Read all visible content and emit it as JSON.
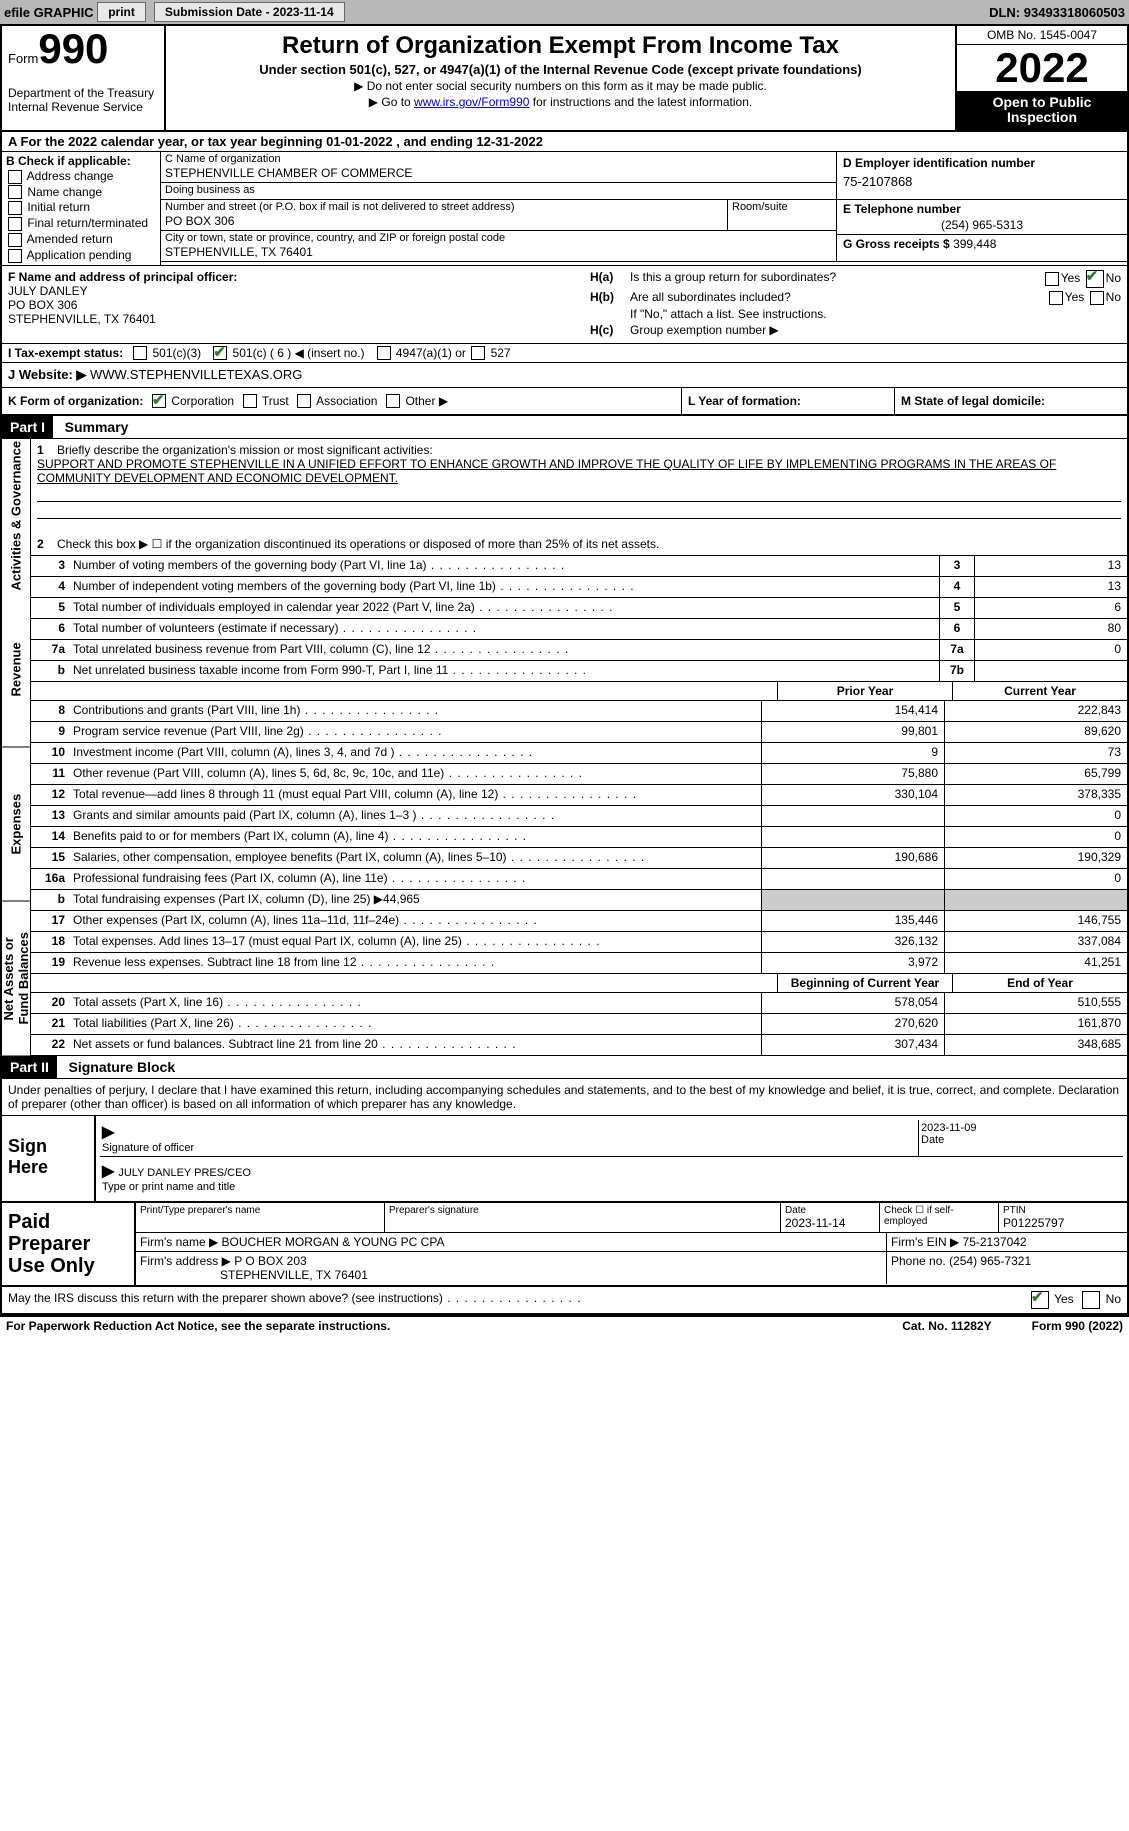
{
  "topbar": {
    "efile": "efile GRAPHIC",
    "print": "print",
    "submission_label": "Submission Date - ",
    "submission_date": "2023-11-14",
    "dln_label": "DLN: ",
    "dln": "93493318060503"
  },
  "header": {
    "form_word": "Form",
    "form_num": "990",
    "dept": "Department of the Treasury\nInternal Revenue Service",
    "title": "Return of Organization Exempt From Income Tax",
    "sub1": "Under section 501(c), 527, or 4947(a)(1) of the Internal Revenue Code (except private foundations)",
    "sub2": "▶ Do not enter social security numbers on this form as it may be made public.",
    "sub3_pre": "▶ Go to ",
    "sub3_link": "www.irs.gov/Form990",
    "sub3_post": " for instructions and the latest information.",
    "omb": "OMB No. 1545-0047",
    "year": "2022",
    "open": "Open to Public Inspection"
  },
  "lineA": {
    "pre": "A  For the 2022 calendar year, or tax year beginning ",
    "begin": "01-01-2022",
    "mid": "   , and ending ",
    "end": "12-31-2022"
  },
  "B": {
    "label": "B Check if applicable:",
    "items": [
      "Address change",
      "Name change",
      "Initial return",
      "Final return/terminated",
      "Amended return",
      "Application pending"
    ]
  },
  "C": {
    "name_label": "C Name of organization",
    "name": "STEPHENVILLE CHAMBER OF COMMERCE",
    "dba_label": "Doing business as",
    "dba": "",
    "addr_label": "Number and street (or P.O. box if mail is not delivered to street address)",
    "addr": "PO BOX 306",
    "room_label": "Room/suite",
    "city_label": "City or town, state or province, country, and ZIP or foreign postal code",
    "city": "STEPHENVILLE, TX  76401"
  },
  "D": {
    "label": "D Employer identification number",
    "val": "75-2107868"
  },
  "E": {
    "label": "E Telephone number",
    "val": "(254) 965-5313"
  },
  "G": {
    "label": "G Gross receipts $ ",
    "val": "399,448"
  },
  "F": {
    "label": "F  Name and address of principal officer:",
    "name": "JULY DANLEY",
    "addr1": "PO BOX 306",
    "addr2": "STEPHENVILLE, TX  76401"
  },
  "H": {
    "a": "Is this a group return for subordinates?",
    "b": "Are all subordinates included?",
    "b_note": "If \"No,\" attach a list. See instructions.",
    "c": "Group exemption number ▶",
    "ha_key": "H(a)",
    "hb_key": "H(b)",
    "hc_key": "H(c)",
    "yes": "Yes",
    "no": "No"
  },
  "I": {
    "label": "I     Tax-exempt status:",
    "opt1": "501(c)(3)",
    "opt2": "501(c) ( 6 ) ◀ (insert no.)",
    "opt3": "4947(a)(1) or",
    "opt4": "527"
  },
  "J": {
    "label": "J    Website: ▶",
    "val": "  WWW.STEPHENVILLETEXAS.ORG"
  },
  "K": {
    "label": "K Form of organization:",
    "corp": "Corporation",
    "trust": "Trust",
    "assoc": "Association",
    "other": "Other ▶",
    "L": "L Year of formation:",
    "M": "M State of legal domicile:"
  },
  "part1": {
    "hdr": "Part I",
    "title": "Summary"
  },
  "side_labels": {
    "ag": "Activities & Governance",
    "rev": "Revenue",
    "exp": "Expenses",
    "net": "Net Assets or\nFund Balances"
  },
  "summary1": {
    "l1": "Briefly describe the organization's mission or most significant activities:",
    "mission": "SUPPORT AND PROMOTE STEPHENVILLE IN A UNIFIED EFFORT TO ENHANCE GROWTH AND IMPROVE THE QUALITY OF LIFE BY IMPLEMENTING PROGRAMS IN THE AREAS OF COMMUNITY DEVELOPMENT AND ECONOMIC DEVELOPMENT.",
    "l2": "Check this box ▶ ☐  if the organization discontinued its operations or disposed of more than 25% of its net assets.",
    "rows": [
      {
        "n": "3",
        "d": "Number of voting members of the governing body (Part VI, line 1a)",
        "box": "3",
        "v": "13"
      },
      {
        "n": "4",
        "d": "Number of independent voting members of the governing body (Part VI, line 1b)",
        "box": "4",
        "v": "13"
      },
      {
        "n": "5",
        "d": "Total number of individuals employed in calendar year 2022 (Part V, line 2a)",
        "box": "5",
        "v": "6"
      },
      {
        "n": "6",
        "d": "Total number of volunteers (estimate if necessary)",
        "box": "6",
        "v": "80"
      },
      {
        "n": "7a",
        "d": "Total unrelated business revenue from Part VIII, column (C), line 12",
        "box": "7a",
        "v": "0"
      },
      {
        "n": "b",
        "d": "Net unrelated business taxable income from Form 990-T, Part I, line 11",
        "box": "7b",
        "v": ""
      }
    ]
  },
  "cols": {
    "prior": "Prior Year",
    "current": "Current Year",
    "beg": "Beginning of Current Year",
    "end": "End of Year"
  },
  "revenue": [
    {
      "n": "8",
      "d": "Contributions and grants (Part VIII, line 1h)",
      "p": "154,414",
      "c": "222,843"
    },
    {
      "n": "9",
      "d": "Program service revenue (Part VIII, line 2g)",
      "p": "99,801",
      "c": "89,620"
    },
    {
      "n": "10",
      "d": "Investment income (Part VIII, column (A), lines 3, 4, and 7d )",
      "p": "9",
      "c": "73"
    },
    {
      "n": "11",
      "d": "Other revenue (Part VIII, column (A), lines 5, 6d, 8c, 9c, 10c, and 11e)",
      "p": "75,880",
      "c": "65,799"
    },
    {
      "n": "12",
      "d": "Total revenue—add lines 8 through 11 (must equal Part VIII, column (A), line 12)",
      "p": "330,104",
      "c": "378,335"
    }
  ],
  "expenses": [
    {
      "n": "13",
      "d": "Grants and similar amounts paid (Part IX, column (A), lines 1–3 )",
      "p": "",
      "c": "0"
    },
    {
      "n": "14",
      "d": "Benefits paid to or for members (Part IX, column (A), line 4)",
      "p": "",
      "c": "0"
    },
    {
      "n": "15",
      "d": "Salaries, other compensation, employee benefits (Part IX, column (A), lines 5–10)",
      "p": "190,686",
      "c": "190,329"
    },
    {
      "n": "16a",
      "d": "Professional fundraising fees (Part IX, column (A), line 11e)",
      "p": "",
      "c": "0"
    },
    {
      "n": "b",
      "d": "Total fundraising expenses (Part IX, column (D), line 25) ▶44,965",
      "shade": true
    },
    {
      "n": "17",
      "d": "Other expenses (Part IX, column (A), lines 11a–11d, 11f–24e)",
      "p": "135,446",
      "c": "146,755"
    },
    {
      "n": "18",
      "d": "Total expenses. Add lines 13–17 (must equal Part IX, column (A), line 25)",
      "p": "326,132",
      "c": "337,084"
    },
    {
      "n": "19",
      "d": "Revenue less expenses. Subtract line 18 from line 12",
      "p": "3,972",
      "c": "41,251"
    }
  ],
  "netassets": [
    {
      "n": "20",
      "d": "Total assets (Part X, line 16)",
      "p": "578,054",
      "c": "510,555"
    },
    {
      "n": "21",
      "d": "Total liabilities (Part X, line 26)",
      "p": "270,620",
      "c": "161,870"
    },
    {
      "n": "22",
      "d": "Net assets or fund balances. Subtract line 21 from line 20",
      "p": "307,434",
      "c": "348,685"
    }
  ],
  "part2": {
    "hdr": "Part II",
    "title": "Signature Block"
  },
  "penalty": "Under penalties of perjury, I declare that I have examined this return, including accompanying schedules and statements, and to the best of my knowledge and belief, it is true, correct, and complete. Declaration of preparer (other than officer) is based on all information of which preparer has any knowledge.",
  "sign": {
    "here": "Sign Here",
    "sig_label": "Signature of officer",
    "date_label": "Date",
    "date": "2023-11-09",
    "name": "JULY DANLEY  PRES/CEO",
    "name_label": "Type or print name and title"
  },
  "prep": {
    "title": "Paid Preparer Use Only",
    "print_label": "Print/Type preparer's name",
    "sig_label": "Preparer's signature",
    "date_label": "Date",
    "date": "2023-11-14",
    "check_label": "Check ☐ if self-employed",
    "ptin_label": "PTIN",
    "ptin": "P01225797",
    "firm_name_label": "Firm's name    ▶",
    "firm_name": "BOUCHER MORGAN & YOUNG PC CPA",
    "firm_ein_label": "Firm's EIN ▶",
    "firm_ein": "75-2137042",
    "firm_addr_label": "Firm's address ▶",
    "firm_addr1": "P O BOX 203",
    "firm_addr2": "STEPHENVILLE, TX  76401",
    "phone_label": "Phone no.",
    "phone": "(254) 965-7321"
  },
  "may_irs": {
    "text": "May the IRS discuss this return with the preparer shown above? (see instructions)",
    "yes": "Yes",
    "no": "No"
  },
  "footer": {
    "l": "For Paperwork Reduction Act Notice, see the separate instructions.",
    "m": "Cat. No. 11282Y",
    "r": "Form 990 (2022)"
  }
}
